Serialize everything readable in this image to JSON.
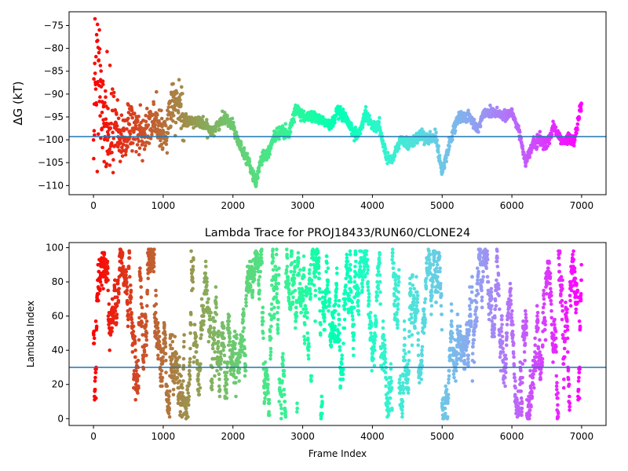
{
  "chart_data": [
    {
      "type": "scatter",
      "title": "",
      "xlabel": "",
      "ylabel": "ΔG (kT)",
      "xlim": [
        -350,
        7350
      ],
      "ylim": [
        -112,
        -72
      ],
      "xticks": [
        0,
        1000,
        2000,
        3000,
        4000,
        5000,
        6000,
        7000
      ],
      "yticks": [
        -110,
        -105,
        -100,
        -95,
        -90,
        -85,
        -80,
        -75
      ],
      "hline": -99.3,
      "hline_color": "#1f77b4",
      "colormap": "rainbow (red at frame 0 → violet at frame 7000)",
      "series_profile": {
        "x": [
          0,
          30,
          60,
          100,
          150,
          200,
          250,
          300,
          400,
          500,
          600,
          700,
          800,
          900,
          1000,
          1100,
          1200,
          1300,
          1500,
          1700,
          1900,
          2000,
          2100,
          2200,
          2300,
          2330,
          2400,
          2500,
          2600,
          2700,
          2800,
          2900,
          3000,
          3200,
          3400,
          3500,
          3600,
          3700,
          3800,
          3900,
          4000,
          4100,
          4200,
          4300,
          4400,
          4500,
          4600,
          4700,
          4800,
          4900,
          5000,
          5100,
          5200,
          5300,
          5400,
          5500,
          5600,
          5700,
          5800,
          5900,
          6000,
          6100,
          6200,
          6300,
          6400,
          6500,
          6600,
          6700,
          6800,
          6900,
          7000
        ],
        "y": [
          -98,
          -90,
          -82,
          -88,
          -95,
          -100,
          -98,
          -96,
          -100,
          -98,
          -97,
          -99,
          -97,
          -96,
          -100,
          -94,
          -92,
          -96,
          -96,
          -98,
          -95,
          -97,
          -101,
          -104,
          -108,
          -110,
          -104,
          -103,
          -99,
          -98,
          -99,
          -93,
          -95,
          -95,
          -97,
          -94,
          -95,
          -98,
          -99,
          -94,
          -97,
          -97,
          -104,
          -104,
          -100,
          -101,
          -100,
          -99,
          -100,
          -99,
          -107,
          -101,
          -96,
          -95,
          -95,
          -98,
          -94,
          -94,
          -94,
          -95,
          -94,
          -98,
          -105,
          -101,
          -100,
          -101,
          -97,
          -100,
          -100,
          -100,
          -92
        ],
        "n_points": 7000
      }
    },
    {
      "type": "scatter",
      "title": "Lambda Trace for PROJ18433/RUN60/CLONE24",
      "xlabel": "Frame Index",
      "ylabel": "Lambda Index",
      "xlim": [
        -350,
        7350
      ],
      "ylim": [
        -4,
        103
      ],
      "xticks": [
        0,
        1000,
        2000,
        3000,
        4000,
        5000,
        6000,
        7000
      ],
      "yticks": [
        0,
        20,
        40,
        60,
        80,
        100
      ],
      "hline": 30,
      "hline_color": "#1f77b4",
      "colormap": "rainbow (red at frame 0 → violet at frame 7000)",
      "series_profile": {
        "description": "lambda index wanders between 0 and 99 across frames 0–7000",
        "y_range": [
          0,
          99
        ],
        "n_points": 7000
      }
    }
  ]
}
